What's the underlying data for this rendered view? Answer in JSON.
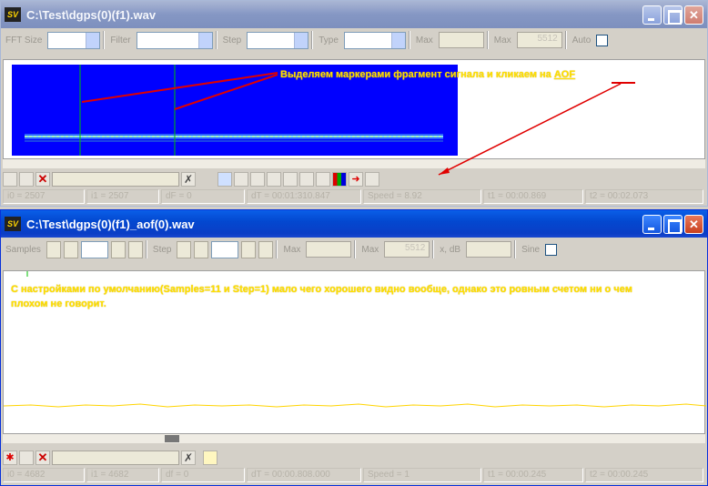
{
  "w1": {
    "title": "C:\\Test\\dgps(0)(f1).wav",
    "toolbar": {
      "fft_size": "FFT Size",
      "filter": "Filter",
      "step": "Step",
      "type": "Type",
      "max1": "Max",
      "max2": "Max",
      "max2_value": "5512",
      "auto": "Auto"
    },
    "annotation": {
      "text": "Выделяем маркерами фрагмент сигнала и кликаем на",
      "link": "AOF"
    },
    "status": [
      "i0 = 2507",
      "i1 = 2507",
      "dF = 0",
      "dT = 00:01:310.847",
      "Speed = 8.92",
      "t1 = 00:00.869",
      "t2 = 00:02.073"
    ]
  },
  "w2": {
    "title": "C:\\Test\\dgps(0)(f1)_aof(0).wav",
    "toolbar": {
      "samples": "Samples",
      "step": "Step",
      "max1": "Max",
      "max2": "Max",
      "max2_value": "5512",
      "mid": "x, dB",
      "sine": "Sine"
    },
    "annotation": {
      "text": "С настройками по умолчанию(Samples=11 и Step=1) мало чего хорошего видно вообще, однако это ровным счетом ни о чем плохом не говорит."
    },
    "status": [
      "i0 = 4682",
      "i1 = 4682",
      "df = 0",
      "dT = 00:00.808.000",
      "Speed = 1",
      "t1 = 00:00.245",
      "t2 = 00:00.245"
    ]
  },
  "colors": {
    "spectro_bg": "#0000ff",
    "annotation": "#ffdf00",
    "arrow": "#e00000",
    "waveform": "#ffd400"
  }
}
